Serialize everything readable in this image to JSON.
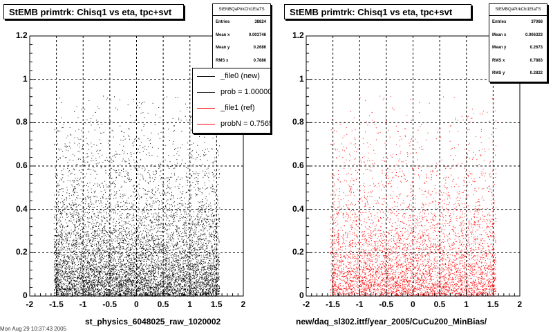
{
  "left_panel": {
    "title": "StEMB primtrk: Chisq1 vs eta, tpc+svt",
    "stats": {
      "name": "StEMBQaPtrkChi1EtaTS",
      "rows": [
        {
          "label": "Entries",
          "value": "38824"
        },
        {
          "label": "Mean x",
          "value": "0.003746"
        },
        {
          "label": "Mean y",
          "value": "0.2686"
        },
        {
          "label": "RMS x",
          "value": "0.7886"
        }
      ]
    },
    "legend": [
      {
        "label": "_file0 (new)",
        "color": "#000000"
      },
      {
        "label": "prob = 1.000000",
        "color": "#000000"
      },
      {
        "label": "_file1 (ref)",
        "color": "#ff0000"
      },
      {
        "label": "probN = 0.756567",
        "color": "#ff0000"
      }
    ],
    "xtitle": "st_physics_6048025_raw_1020002"
  },
  "right_panel": {
    "title": "StEMB primtrk: Chisq1 vs eta, tpc+svt",
    "stats": {
      "name": "StEMBQaPtrkChi1EtaTS",
      "rows": [
        {
          "label": "Entries",
          "value": "37068"
        },
        {
          "label": "Mean x",
          "value": "0.006323"
        },
        {
          "label": "Mean y",
          "value": "0.2673"
        },
        {
          "label": "RMS x",
          "value": "0.7883"
        },
        {
          "label": "RMS y",
          "value": "0.2822"
        }
      ]
    },
    "xtitle": "new/daq_sl302.ittf/year_2005/CuCu200_MinBias/"
  },
  "footer_cut": "Mon Aug 29 10:37:43 2005",
  "chart_data": [
    {
      "type": "scatter",
      "title": "StEMB primtrk: Chisq1 vs eta, tpc+svt",
      "xlabel": "st_physics_6048025_raw_1020002",
      "ylabel": "",
      "xlim": [
        -2,
        2
      ],
      "ylim": [
        0,
        1.2
      ],
      "xticks": [
        "-2",
        "-1.5",
        "-1",
        "-0.5",
        "0",
        "0.5",
        "1",
        "1.5",
        "2"
      ],
      "yticks": [
        "0",
        "0.2",
        "0.4",
        "0.6",
        "0.8",
        "1",
        "1.2"
      ],
      "grid": true,
      "color": "#000000",
      "series": [
        {
          "name": "_file0 (new)",
          "entries": 38824,
          "mean_x": 0.003746,
          "mean_y": 0.2686,
          "rms_x": 0.7886
        }
      ],
      "eta_range": [
        -1.55,
        1.55
      ]
    },
    {
      "type": "scatter",
      "title": "StEMB primtrk: Chisq1 vs eta, tpc+svt",
      "xlabel": "new/daq_sl302.ittf/year_2005/CuCu200_MinBias/",
      "ylabel": "",
      "xlim": [
        -2,
        2
      ],
      "ylim": [
        0,
        1.2
      ],
      "xticks": [
        "-2",
        "-1.5",
        "-1",
        "-0.5",
        "0",
        "0.5",
        "1",
        "1.5",
        "2"
      ],
      "yticks": [
        "0",
        "0.2",
        "0.4",
        "0.6",
        "0.8",
        "1",
        "1.2"
      ],
      "grid": true,
      "color": "#ff0000",
      "series": [
        {
          "name": "_file1 (ref)",
          "entries": 37068,
          "mean_x": 0.006323,
          "mean_y": 0.2673,
          "rms_x": 0.7883,
          "rms_y": 0.2822
        }
      ],
      "eta_range": [
        -1.55,
        1.55
      ]
    }
  ]
}
